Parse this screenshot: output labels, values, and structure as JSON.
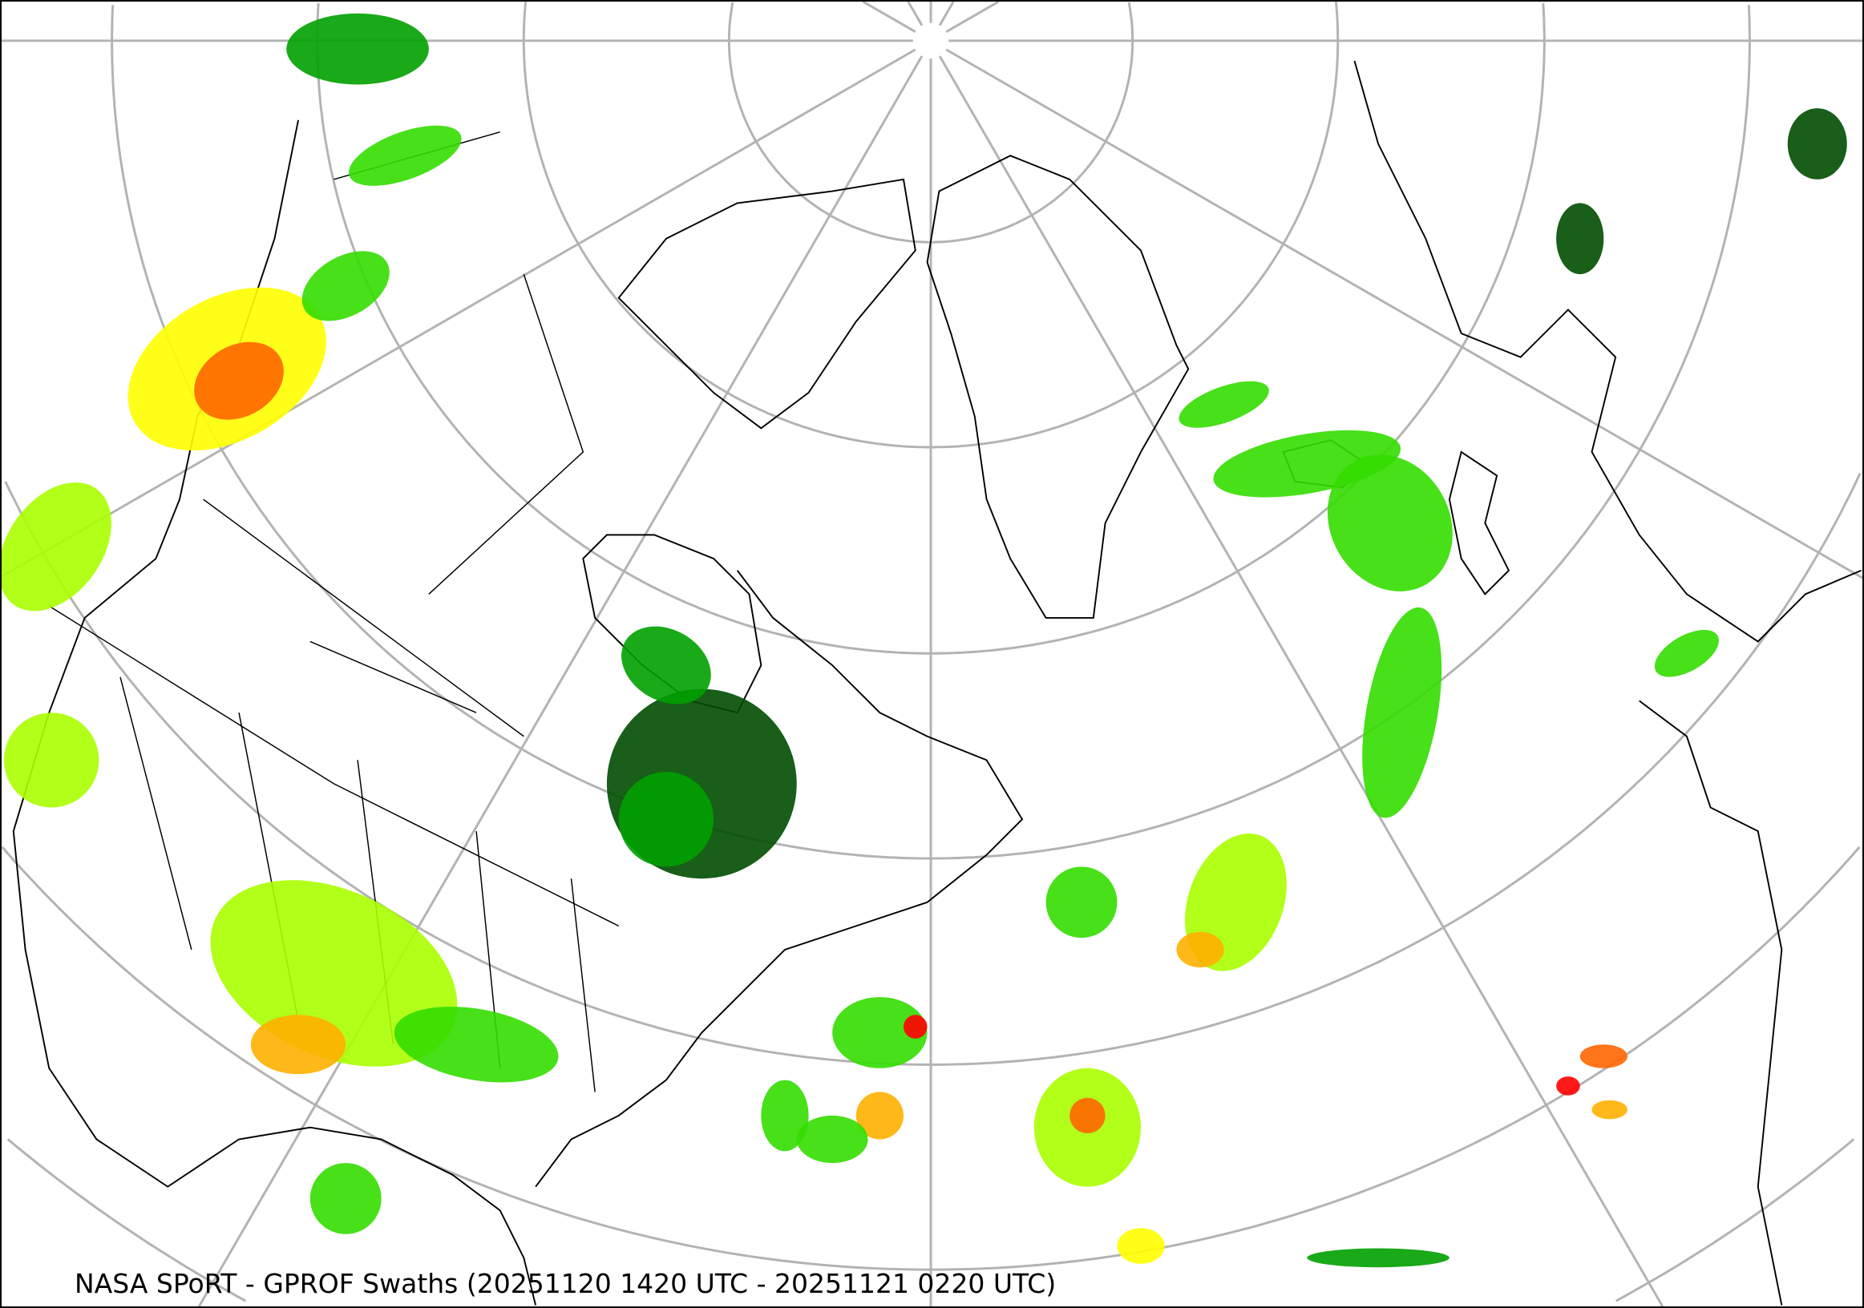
{
  "caption": "NASA SPoRT - GPROF Swaths (20251120 1420 UTC - 20251121 0220 UTC)",
  "map": {
    "projection": "polar-stereographic",
    "graticule_color": "#b3b3b3",
    "coastline_color": "#000000",
    "precip_colors": [
      "#004d00",
      "#00a000",
      "#33dd00",
      "#aaff00",
      "#ffff00",
      "#ffb000",
      "#ff6600",
      "#ff0000"
    ]
  }
}
